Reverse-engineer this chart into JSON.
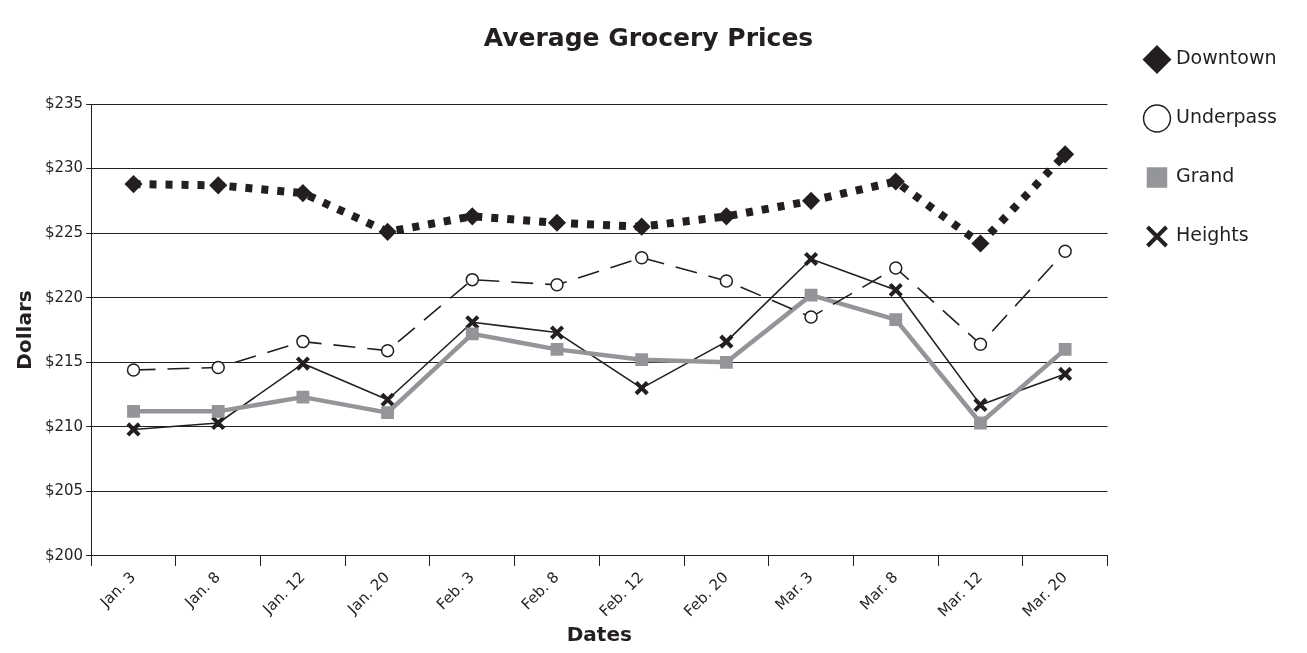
{
  "chart_data": {
    "type": "line",
    "title": "Average Grocery Prices",
    "xlabel": "Dates",
    "ylabel": "Dollars",
    "categories": [
      "Jan. 3",
      "Jan. 8",
      "Jan. 12",
      "Jan. 20",
      "Feb. 3",
      "Feb. 8",
      "Feb. 12",
      "Feb. 20",
      "Mar. 3",
      "Mar. 8",
      "Mar. 12",
      "Mar. 20"
    ],
    "series": [
      {
        "name": "Downtown",
        "color": "#231f20",
        "marker": "diamond",
        "line_style": "dotted",
        "values": [
          228.8,
          228.7,
          228.1,
          225.1,
          226.3,
          225.8,
          225.5,
          226.3,
          227.5,
          229.0,
          224.2,
          231.1
        ]
      },
      {
        "name": "Underpass",
        "color": "#231f20",
        "marker": "circle",
        "line_style": "dashed",
        "values": [
          214.4,
          214.6,
          216.6,
          215.9,
          221.4,
          221.0,
          223.1,
          221.3,
          218.5,
          222.3,
          216.4,
          223.6
        ]
      },
      {
        "name": "Grand",
        "color": "#939598",
        "marker": "square",
        "line_style": "solid",
        "values": [
          211.2,
          211.2,
          212.3,
          211.1,
          217.2,
          216.0,
          215.2,
          215.0,
          220.2,
          218.3,
          210.3,
          216.0
        ]
      },
      {
        "name": "Heights",
        "color": "#231f20",
        "marker": "cross",
        "line_style": "solid",
        "values": [
          209.8,
          210.3,
          214.9,
          212.1,
          218.1,
          217.3,
          213.0,
          216.6,
          223.0,
          220.6,
          211.7,
          214.1
        ]
      }
    ],
    "ylim": [
      200,
      235
    ],
    "yticks": [
      {
        "value": 200,
        "label": "$200"
      },
      {
        "value": 205,
        "label": "$205"
      },
      {
        "value": 210,
        "label": "$210"
      },
      {
        "value": 215,
        "label": "$215"
      },
      {
        "value": 220,
        "label": "$220"
      },
      {
        "value": 225,
        "label": "$225"
      },
      {
        "value": 230,
        "label": "$230"
      },
      {
        "value": 235,
        "label": "$235"
      }
    ],
    "grid": "y",
    "legend": "right"
  }
}
